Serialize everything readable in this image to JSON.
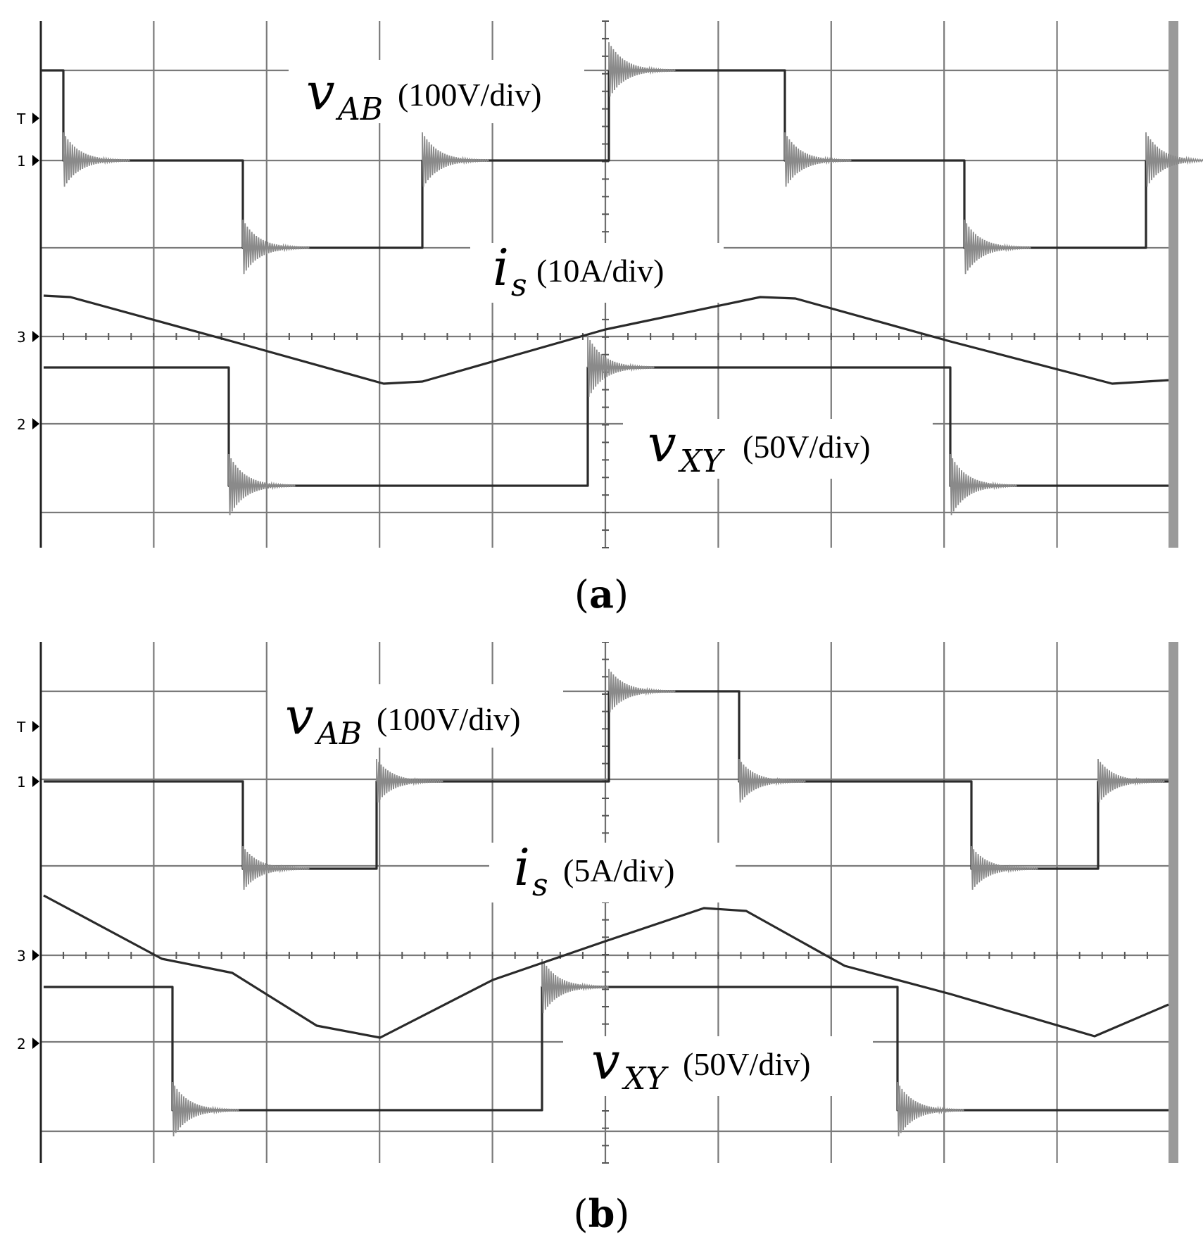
{
  "chart_data": [
    {
      "type": "line",
      "panel": "a",
      "caption": "a",
      "grid": true,
      "grid_divisions": {
        "x": 10,
        "y": 6
      },
      "traces": [
        {
          "name": "v_AB",
          "label_main": "v",
          "label_sub": "AB",
          "label_unit": "(100V/div)",
          "channel_marker": "1",
          "shape": "three-level square wave",
          "ringing": true
        },
        {
          "name": "i_s",
          "label_main": "i",
          "label_sub": "s",
          "label_unit": "(10A/div)",
          "channel_marker": "3",
          "shape": "triangular current",
          "ringing": false
        },
        {
          "name": "v_XY",
          "label_main": "v",
          "label_sub": "XY",
          "label_unit": "(50V/div)",
          "channel_marker": "2",
          "shape": "three-level square wave",
          "ringing": true
        }
      ],
      "trigger_marker": "T"
    },
    {
      "type": "line",
      "panel": "b",
      "caption": "b",
      "grid": true,
      "grid_divisions": {
        "x": 10,
        "y": 6
      },
      "traces": [
        {
          "name": "v_AB",
          "label_main": "v",
          "label_sub": "AB",
          "label_unit": "(100V/div)",
          "channel_marker": "1",
          "shape": "three-level square wave",
          "ringing": true
        },
        {
          "name": "i_s",
          "label_main": "i",
          "label_sub": "s",
          "label_unit": "(5A/div)",
          "channel_marker": "3",
          "shape": "triangular current",
          "ringing": false
        },
        {
          "name": "v_XY",
          "label_main": "v",
          "label_sub": "XY",
          "label_unit": "(50V/div)",
          "channel_marker": "2",
          "shape": "three-level square wave",
          "ringing": true
        }
      ],
      "trigger_marker": "T"
    }
  ]
}
